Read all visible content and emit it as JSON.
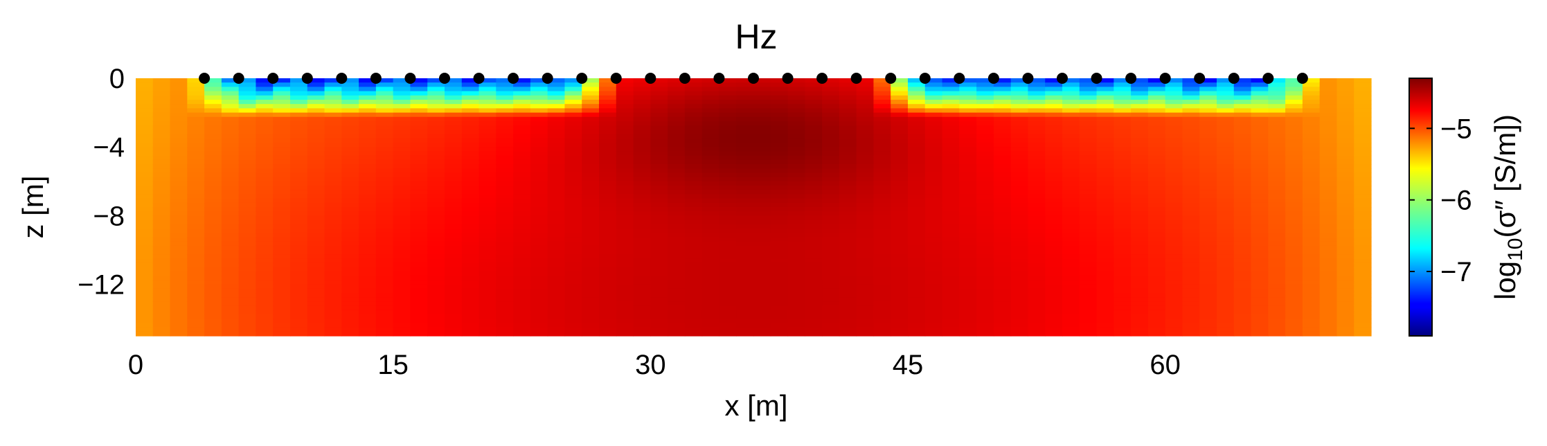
{
  "chart_data": {
    "type": "heatmap",
    "title": "Hz",
    "xlabel": "x [m]",
    "ylabel": "z [m]",
    "xlim": [
      0,
      72
    ],
    "ylim": [
      -15,
      0
    ],
    "xticks": [
      0,
      15,
      30,
      45,
      60
    ],
    "xtick_labels": [
      "0",
      "15",
      "30",
      "45",
      "60"
    ],
    "yticks": [
      0,
      -4,
      -8,
      -12
    ],
    "ytick_labels": [
      "0",
      "−4",
      "−8",
      "−12"
    ],
    "grid": false,
    "colormap": "jet",
    "colorbar": {
      "label_prefix": "log",
      "label_sub": "10",
      "label_sym": "(σ″ [S/m])",
      "vmin": -7.9,
      "vmax": -4.3,
      "ticks": [
        -5,
        -6,
        -7
      ],
      "tick_labels": [
        "−5",
        "−6",
        "−7"
      ]
    },
    "grid_resolution": {
      "nx": 72,
      "nz": 15
    },
    "field": {
      "background": -5.1,
      "anomaly": {
        "x_center": 36,
        "z_center": -3.5,
        "sigma_x": 7.5,
        "sigma_z": 3.2,
        "peak": -4.32
      },
      "broad": {
        "x_center": 36,
        "z_center": -13,
        "sigma_x": 22,
        "sigma_z": 9,
        "amplitude": 0.55
      },
      "shallow_low_bands": [
        {
          "x_start": 5,
          "x_end": 26,
          "z_bottom": -2.2,
          "min": -7.3
        },
        {
          "x_start": 45,
          "x_end": 67,
          "z_bottom": -2.2,
          "min": -7.3
        }
      ]
    },
    "electrodes": {
      "z": 0,
      "x": [
        4,
        6,
        8,
        10,
        12,
        14,
        16,
        18,
        20,
        22,
        24,
        26,
        28,
        30,
        32,
        34,
        36,
        38,
        40,
        42,
        44,
        46,
        48,
        50,
        52,
        54,
        56,
        58,
        60,
        62,
        64,
        66,
        68
      ]
    }
  }
}
